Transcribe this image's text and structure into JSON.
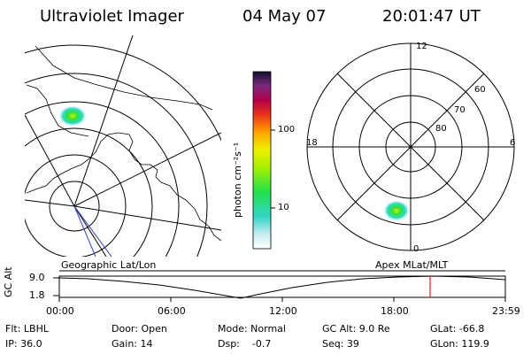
{
  "header": {
    "instrument": "Ultraviolet Imager",
    "date": "04 May 07",
    "time": "20:01:47 UT"
  },
  "colorbar": {
    "unit_label": "photon cm⁻²s⁻¹",
    "tick_100": "100",
    "tick_10": "10"
  },
  "polar": {
    "mlt_12": "12",
    "mlt_18": "18",
    "mlt_6": "6",
    "mlt_0": "0",
    "lat_60": "60",
    "lat_70": "70",
    "lat_80": "80"
  },
  "timeline": {
    "left_label": "Geographic Lat/Lon",
    "right_label": "Apex MLat/MLT",
    "y_axis_label": "GC Alt",
    "y_top": "9.0",
    "y_bottom": "1.8",
    "x_ticks": [
      "00:00",
      "06:00",
      "12:00",
      "18:00",
      "23:59"
    ],
    "current_marker_color": "#d0221f"
  },
  "info": {
    "filter": "Flt: LBHL",
    "door": "Door: Open",
    "mode": "Mode: Normal",
    "gc_alt": "GC Alt: 9.0 Re",
    "glat": "GLat: -66.8",
    "ip": "IP: 36.0",
    "gain": "Gain: 14",
    "dsp": "Dsp:    -0.7",
    "seq": "Seq: 39",
    "glon": "GLon: 119.9"
  }
}
